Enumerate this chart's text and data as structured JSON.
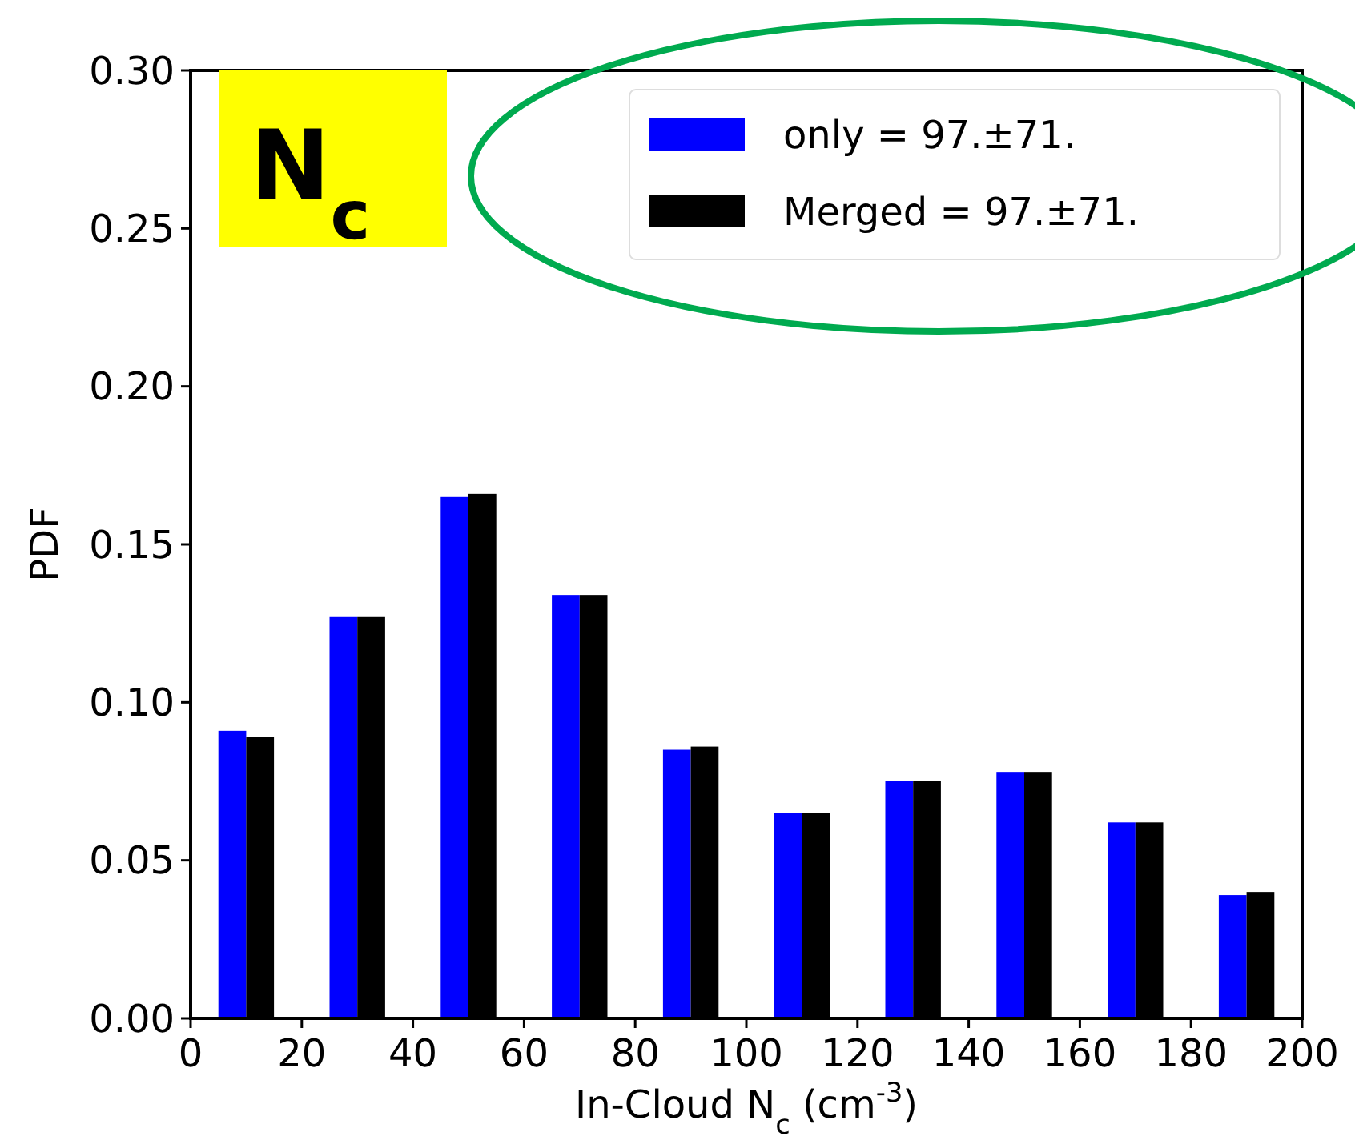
{
  "chart_data": {
    "type": "bar",
    "xlabel": "In-Cloud N$_{c}$ (cm$^{-3}$)",
    "ylabel": "PDF",
    "x": [
      10,
      30,
      50,
      70,
      90,
      110,
      130,
      150,
      170,
      190
    ],
    "series": [
      {
        "name": "only = 97.±71.",
        "color": "#0000ff",
        "values": [
          0.091,
          0.127,
          0.165,
          0.134,
          0.085,
          0.065,
          0.075,
          0.078,
          0.062,
          0.039
        ]
      },
      {
        "name": "Merged = 97.±71.",
        "color": "#000000",
        "values": [
          0.089,
          0.127,
          0.166,
          0.134,
          0.086,
          0.065,
          0.075,
          0.078,
          0.062,
          0.04
        ]
      }
    ],
    "annotations": [
      "N$_{c}$"
    ],
    "xlim": [
      0,
      200
    ],
    "xticks": [
      0,
      20,
      40,
      60,
      80,
      100,
      120,
      140,
      160,
      180,
      200
    ],
    "ylim": [
      0,
      0.3
    ],
    "yticks": [
      {
        "value": 0,
        "label": "0.00"
      },
      {
        "value": 0.05,
        "label": "0.05"
      },
      {
        "value": 0.1,
        "label": "0.10"
      },
      {
        "value": 0.15,
        "label": "0.15"
      },
      {
        "value": 0.2,
        "label": "0.20"
      },
      {
        "value": 0.25,
        "label": "0.25"
      },
      {
        "value": 0.3,
        "label": "0.30"
      }
    ],
    "legend": "top right",
    "grid": false
  }
}
